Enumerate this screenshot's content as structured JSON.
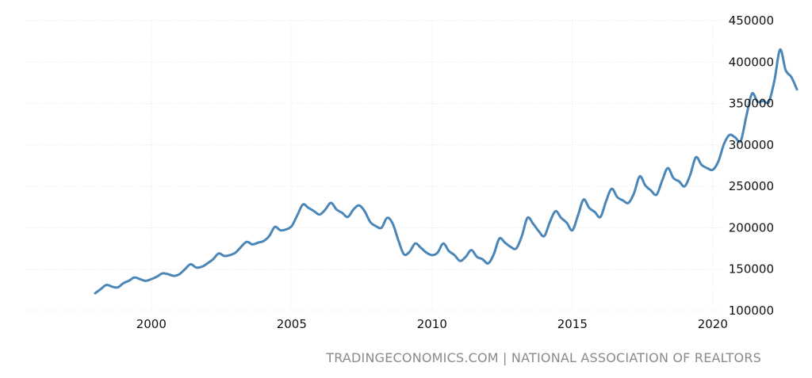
{
  "chart_data": {
    "type": "line",
    "title": "",
    "xlabel": "",
    "ylabel": "",
    "ylim": [
      100000,
      450000
    ],
    "xlim": [
      1998.0,
      2023.2
    ],
    "y_ticks": [
      450000,
      400000,
      350000,
      300000,
      250000,
      200000,
      150000,
      100000
    ],
    "y_tick_labels": [
      "450000",
      "400000",
      "350000",
      "300000",
      "250000",
      "200000",
      "150000",
      "100000"
    ],
    "x_ticks": [
      2000,
      2005,
      2010,
      2015,
      2020
    ],
    "x_tick_labels": [
      "2000",
      "2005",
      "2010",
      "2015",
      "2020"
    ],
    "grid": true,
    "colors": {
      "line": "#4a86b8",
      "grid": "#e6e6e6",
      "text": "#111111",
      "source": "#8a8a8a"
    },
    "series": [
      {
        "x": [
          1998.0,
          1998.2,
          1998.4,
          1998.6,
          1998.8,
          1999.0,
          1999.2,
          1999.4,
          1999.6,
          1999.8,
          2000.0,
          2000.2,
          2000.4,
          2000.6,
          2000.8,
          2001.0,
          2001.2,
          2001.4,
          2001.6,
          2001.8,
          2002.0,
          2002.2,
          2002.4,
          2002.6,
          2002.8,
          2003.0,
          2003.2,
          2003.4,
          2003.6,
          2003.8,
          2004.0,
          2004.2,
          2004.4,
          2004.6,
          2004.8,
          2005.0,
          2005.2,
          2005.4,
          2005.6,
          2005.8,
          2006.0,
          2006.2,
          2006.4,
          2006.6,
          2006.8,
          2007.0,
          2007.2,
          2007.4,
          2007.6,
          2007.8,
          2008.0,
          2008.2,
          2008.4,
          2008.6,
          2008.8,
          2009.0,
          2009.2,
          2009.4,
          2009.6,
          2009.8,
          2010.0,
          2010.2,
          2010.4,
          2010.6,
          2010.8,
          2011.0,
          2011.2,
          2011.4,
          2011.6,
          2011.8,
          2012.0,
          2012.2,
          2012.4,
          2012.6,
          2012.8,
          2013.0,
          2013.2,
          2013.4,
          2013.6,
          2013.8,
          2014.0,
          2014.2,
          2014.4,
          2014.6,
          2014.8,
          2015.0,
          2015.2,
          2015.4,
          2015.6,
          2015.8,
          2016.0,
          2016.2,
          2016.4,
          2016.6,
          2016.8,
          2017.0,
          2017.2,
          2017.4,
          2017.6,
          2017.8,
          2018.0,
          2018.2,
          2018.4,
          2018.6,
          2018.8,
          2019.0,
          2019.2,
          2019.4,
          2019.6,
          2019.8,
          2020.0,
          2020.2,
          2020.4,
          2020.6,
          2020.8,
          2021.0,
          2021.2,
          2021.4,
          2021.6,
          2021.8,
          2022.0,
          2022.2,
          2022.4,
          2022.6,
          2022.8,
          2023.0
        ],
        "values": [
          121000,
          126000,
          131000,
          129000,
          128000,
          133000,
          136000,
          140000,
          138000,
          136000,
          138000,
          141000,
          145000,
          144000,
          142000,
          144000,
          150000,
          156000,
          152000,
          153000,
          157000,
          162000,
          169000,
          166000,
          167000,
          170000,
          177000,
          183000,
          180000,
          182000,
          184000,
          190000,
          201000,
          197000,
          198000,
          202000,
          215000,
          228000,
          224000,
          220000,
          216000,
          222000,
          230000,
          222000,
          218000,
          213000,
          222000,
          227000,
          220000,
          207000,
          202000,
          200000,
          212000,
          205000,
          185000,
          168000,
          171000,
          181000,
          176000,
          170000,
          167000,
          170000,
          181000,
          172000,
          167000,
          160000,
          165000,
          173000,
          165000,
          162000,
          157000,
          168000,
          187000,
          182000,
          177000,
          175000,
          190000,
          212000,
          205000,
          196000,
          190000,
          207000,
          220000,
          212000,
          206000,
          197000,
          215000,
          234000,
          224000,
          219000,
          213000,
          232000,
          247000,
          237000,
          233000,
          230000,
          242000,
          262000,
          251000,
          245000,
          240000,
          257000,
          272000,
          260000,
          256000,
          250000,
          264000,
          285000,
          276000,
          272000,
          270000,
          280000,
          301000,
          312000,
          309000,
          305000,
          335000,
          362000,
          352000,
          353000,
          352000,
          378000,
          415000,
          390000,
          382000,
          367000
        ]
      }
    ]
  },
  "source": "TRADINGECONOMICS.COM | NATIONAL ASSOCIATION OF REALTORS"
}
